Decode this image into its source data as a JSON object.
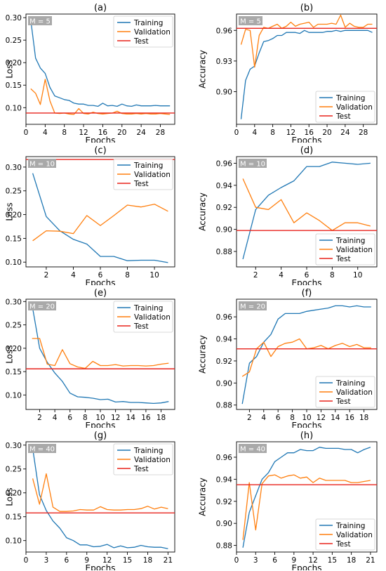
{
  "colors": {
    "training": "#1f77b4",
    "validation": "#ff7f0e",
    "test": "#e8231c",
    "mbadge_bg": "#a9a9a9"
  },
  "chart_data": [
    {
      "type": "line",
      "title": "(a)",
      "xlabel": "Epochs",
      "ylabel": "Loss",
      "badge": "M = 5",
      "legend": "top-right",
      "xlim": [
        0,
        31
      ],
      "ylim": [
        0.063,
        0.308
      ],
      "xticks": [
        0,
        4,
        8,
        12,
        16,
        20,
        24,
        28
      ],
      "yticks": [
        0.1,
        0.15,
        0.2,
        0.25,
        0.3
      ],
      "ytick_labels": [
        "0.10",
        "0.15",
        "0.20",
        "0.25",
        "0.30"
      ],
      "series": [
        {
          "name": "Training",
          "x": [
            1,
            2,
            3,
            4,
            5,
            6,
            7,
            8,
            9,
            10,
            11,
            12,
            13,
            14,
            15,
            16,
            17,
            18,
            19,
            20,
            21,
            22,
            23,
            24,
            25,
            26,
            27,
            28,
            29,
            30
          ],
          "y": [
            0.295,
            0.21,
            0.188,
            0.176,
            0.145,
            0.126,
            0.122,
            0.118,
            0.116,
            0.11,
            0.108,
            0.108,
            0.105,
            0.105,
            0.103,
            0.11,
            0.104,
            0.105,
            0.103,
            0.108,
            0.104,
            0.103,
            0.106,
            0.104,
            0.104,
            0.104,
            0.105,
            0.104,
            0.104,
            0.104
          ]
        },
        {
          "name": "Validation",
          "x": [
            1,
            2,
            3,
            4,
            5,
            6,
            7,
            8,
            9,
            10,
            11,
            12,
            13,
            14,
            15,
            16,
            17,
            18,
            19,
            20,
            21,
            22,
            23,
            24,
            25,
            26,
            27,
            28,
            29,
            30
          ],
          "y": [
            0.142,
            0.132,
            0.107,
            0.163,
            0.115,
            0.088,
            0.087,
            0.088,
            0.086,
            0.085,
            0.098,
            0.087,
            0.086,
            0.09,
            0.087,
            0.086,
            0.087,
            0.088,
            0.092,
            0.087,
            0.086,
            0.086,
            0.087,
            0.086,
            0.087,
            0.086,
            0.086,
            0.087,
            0.086,
            0.085
          ]
        },
        {
          "name": "Test",
          "hline": 0.088
        }
      ]
    },
    {
      "type": "line",
      "title": "(b)",
      "xlabel": "Epochs",
      "ylabel": "Accuracy",
      "badge": "M = 5",
      "legend": "bottom-right",
      "xlim": [
        0,
        31
      ],
      "ylim": [
        0.868,
        0.976
      ],
      "xticks": [
        0,
        4,
        8,
        12,
        16,
        20,
        24,
        28
      ],
      "yticks": [
        0.9,
        0.93,
        0.96
      ],
      "ytick_labels": [
        "0.90",
        "0.93",
        "0.96"
      ],
      "series": [
        {
          "name": "Training",
          "x": [
            1,
            2,
            3,
            4,
            5,
            6,
            7,
            8,
            9,
            10,
            11,
            12,
            13,
            14,
            15,
            16,
            17,
            18,
            19,
            20,
            21,
            22,
            23,
            24,
            25,
            26,
            27,
            28,
            29,
            30
          ],
          "y": [
            0.873,
            0.911,
            0.922,
            0.925,
            0.938,
            0.949,
            0.95,
            0.952,
            0.955,
            0.955,
            0.958,
            0.958,
            0.958,
            0.957,
            0.96,
            0.958,
            0.958,
            0.958,
            0.958,
            0.959,
            0.959,
            0.96,
            0.959,
            0.96,
            0.96,
            0.96,
            0.96,
            0.96,
            0.96,
            0.958
          ]
        },
        {
          "name": "Validation",
          "x": [
            1,
            2,
            3,
            4,
            5,
            6,
            7,
            8,
            9,
            10,
            11,
            12,
            13,
            14,
            15,
            16,
            17,
            18,
            19,
            20,
            21,
            22,
            23,
            24,
            25,
            26,
            27,
            28,
            29,
            30
          ],
          "y": [
            0.946,
            0.961,
            0.96,
            0.924,
            0.955,
            0.963,
            0.962,
            0.964,
            0.966,
            0.962,
            0.964,
            0.968,
            0.964,
            0.966,
            0.967,
            0.968,
            0.963,
            0.966,
            0.966,
            0.966,
            0.967,
            0.966,
            0.975,
            0.963,
            0.967,
            0.964,
            0.963,
            0.963,
            0.966,
            0.966
          ]
        },
        {
          "name": "Test",
          "hline": 0.962
        }
      ]
    },
    {
      "type": "line",
      "title": "(c)",
      "xlabel": "Epochs",
      "ylabel": "Loss",
      "badge": "M = 10",
      "legend": "top-right",
      "xlim": [
        0.5,
        11.5
      ],
      "ylim": [
        0.09,
        0.322
      ],
      "xticks": [
        2,
        4,
        6,
        8,
        10
      ],
      "yticks": [
        0.1,
        0.15,
        0.2,
        0.25,
        0.3
      ],
      "ytick_labels": [
        "0.10",
        "0.15",
        "0.20",
        "0.25",
        "0.30"
      ],
      "series": [
        {
          "name": "Training",
          "x": [
            1,
            2,
            3,
            4,
            5,
            6,
            7,
            8,
            9,
            10,
            11
          ],
          "y": [
            0.287,
            0.196,
            0.166,
            0.148,
            0.138,
            0.112,
            0.112,
            0.103,
            0.104,
            0.104,
            0.099
          ]
        },
        {
          "name": "Validation",
          "x": [
            1,
            2,
            3,
            4,
            5,
            6,
            7,
            8,
            9,
            10,
            11
          ],
          "y": [
            0.145,
            0.166,
            0.165,
            0.16,
            0.198,
            0.177,
            0.198,
            0.22,
            0.216,
            0.222,
            0.207
          ]
        },
        {
          "name": "Test",
          "hline": 0.316
        }
      ]
    },
    {
      "type": "line",
      "title": "(d)",
      "xlabel": "Epochs",
      "ylabel": "Accuracy",
      "badge": "M = 10",
      "legend": "bottom-right",
      "xlim": [
        0.5,
        11.5
      ],
      "ylim": [
        0.866,
        0.966
      ],
      "xticks": [
        2,
        4,
        6,
        8,
        10
      ],
      "yticks": [
        0.88,
        0.9,
        0.92,
        0.94,
        0.96
      ],
      "ytick_labels": [
        "0.88",
        "0.90",
        "0.92",
        "0.94",
        "0.96"
      ],
      "series": [
        {
          "name": "Training",
          "x": [
            1,
            2,
            3,
            4,
            5,
            6,
            7,
            8,
            9,
            10,
            11
          ],
          "y": [
            0.873,
            0.918,
            0.931,
            0.938,
            0.944,
            0.957,
            0.957,
            0.961,
            0.96,
            0.959,
            0.96
          ]
        },
        {
          "name": "Validation",
          "x": [
            1,
            2,
            3,
            4,
            5,
            6,
            7,
            8,
            9,
            10,
            11
          ],
          "y": [
            0.946,
            0.92,
            0.918,
            0.927,
            0.906,
            0.915,
            0.908,
            0.899,
            0.906,
            0.906,
            0.903
          ]
        },
        {
          "name": "Test",
          "hline": 0.899
        }
      ]
    },
    {
      "type": "line",
      "title": "(e)",
      "xlabel": "Epochs",
      "ylabel": "Loss",
      "badge": "M = 20",
      "legend": "top-right",
      "xlim": [
        0.2,
        19.8
      ],
      "ylim": [
        0.069,
        0.305
      ],
      "xticks": [
        2,
        4,
        6,
        8,
        10,
        12,
        14,
        16,
        18
      ],
      "yticks": [
        0.1,
        0.15,
        0.2,
        0.25,
        0.3
      ],
      "ytick_labels": [
        "0.10",
        "0.15",
        "0.20",
        "0.25",
        "0.30"
      ],
      "series": [
        {
          "name": "Training",
          "x": [
            1,
            2,
            3,
            4,
            5,
            6,
            7,
            8,
            9,
            10,
            11,
            12,
            13,
            14,
            15,
            16,
            17,
            18,
            19
          ],
          "y": [
            0.293,
            0.2,
            0.17,
            0.147,
            0.129,
            0.104,
            0.096,
            0.095,
            0.093,
            0.09,
            0.091,
            0.085,
            0.086,
            0.084,
            0.084,
            0.083,
            0.082,
            0.083,
            0.086
          ]
        },
        {
          "name": "Validation",
          "x": [
            1,
            2,
            3,
            4,
            5,
            6,
            7,
            8,
            9,
            10,
            11,
            12,
            13,
            14,
            15,
            16,
            17,
            18,
            19
          ],
          "y": [
            0.221,
            0.221,
            0.166,
            0.163,
            0.197,
            0.167,
            0.16,
            0.157,
            0.172,
            0.163,
            0.163,
            0.165,
            0.162,
            0.163,
            0.163,
            0.162,
            0.163,
            0.166,
            0.168
          ]
        },
        {
          "name": "Test",
          "hline": 0.156
        }
      ]
    },
    {
      "type": "line",
      "title": "(f)",
      "xlabel": "Epochs",
      "ylabel": "Accuracy",
      "badge": "M = 20",
      "legend": "bottom-right",
      "xlim": [
        0.2,
        19.8
      ],
      "ylim": [
        0.876,
        0.976
      ],
      "xticks": [
        2,
        4,
        6,
        8,
        10,
        12,
        14,
        16,
        18
      ],
      "yticks": [
        0.88,
        0.9,
        0.92,
        0.94,
        0.96
      ],
      "ytick_labels": [
        "0.88",
        "0.90",
        "0.92",
        "0.94",
        "0.96"
      ],
      "series": [
        {
          "name": "Training",
          "x": [
            1,
            2,
            3,
            4,
            5,
            6,
            7,
            8,
            9,
            10,
            11,
            12,
            13,
            14,
            15,
            16,
            17,
            18,
            19
          ],
          "y": [
            0.881,
            0.918,
            0.924,
            0.937,
            0.944,
            0.958,
            0.963,
            0.963,
            0.963,
            0.965,
            0.966,
            0.967,
            0.968,
            0.97,
            0.97,
            0.969,
            0.97,
            0.969,
            0.969
          ]
        },
        {
          "name": "Validation",
          "x": [
            1,
            2,
            3,
            4,
            5,
            6,
            7,
            8,
            9,
            10,
            11,
            12,
            13,
            14,
            15,
            16,
            17,
            18,
            19
          ],
          "y": [
            0.906,
            0.91,
            0.931,
            0.937,
            0.924,
            0.933,
            0.936,
            0.937,
            0.94,
            0.931,
            0.932,
            0.934,
            0.931,
            0.934,
            0.936,
            0.933,
            0.935,
            0.932,
            0.932
          ]
        },
        {
          "name": "Test",
          "hline": 0.931
        }
      ]
    },
    {
      "type": "line",
      "title": "(g)",
      "xlabel": "Epochs",
      "ylabel": "Loss",
      "badge": "M = 40",
      "legend": "top-right",
      "xlim": [
        0,
        22
      ],
      "ylim": [
        0.076,
        0.307
      ],
      "xticks": [
        0,
        3,
        6,
        9,
        12,
        15,
        18,
        21
      ],
      "yticks": [
        0.1,
        0.15,
        0.2,
        0.25,
        0.3
      ],
      "ytick_labels": [
        "0.10",
        "0.15",
        "0.20",
        "0.25",
        "0.30"
      ],
      "series": [
        {
          "name": "Training",
          "x": [
            1,
            2,
            3,
            4,
            5,
            6,
            7,
            8,
            9,
            10,
            11,
            12,
            13,
            14,
            15,
            16,
            17,
            18,
            19,
            20,
            21
          ],
          "y": [
            0.293,
            0.196,
            0.163,
            0.141,
            0.126,
            0.106,
            0.1,
            0.091,
            0.091,
            0.087,
            0.088,
            0.092,
            0.085,
            0.089,
            0.085,
            0.086,
            0.09,
            0.087,
            0.086,
            0.086,
            0.083
          ]
        },
        {
          "name": "Validation",
          "x": [
            1,
            2,
            3,
            4,
            5,
            6,
            7,
            8,
            9,
            10,
            11,
            12,
            13,
            14,
            15,
            16,
            17,
            18,
            19,
            20,
            21
          ],
          "y": [
            0.23,
            0.176,
            0.24,
            0.17,
            0.161,
            0.161,
            0.162,
            0.165,
            0.164,
            0.164,
            0.171,
            0.165,
            0.164,
            0.164,
            0.165,
            0.165,
            0.167,
            0.172,
            0.166,
            0.17,
            0.167
          ]
        },
        {
          "name": "Test",
          "hline": 0.158
        }
      ]
    },
    {
      "type": "line",
      "title": "(h)",
      "xlabel": "Epochs",
      "ylabel": "Accuracy",
      "badge": "M = 40",
      "legend": "bottom-right",
      "xlim": [
        0,
        22
      ],
      "ylim": [
        0.874,
        0.974
      ],
      "xticks": [
        0,
        3,
        6,
        9,
        12,
        15,
        18,
        21
      ],
      "yticks": [
        0.88,
        0.9,
        0.92,
        0.94,
        0.96
      ],
      "ytick_labels": [
        "0.88",
        "0.90",
        "0.92",
        "0.94",
        "0.96"
      ],
      "series": [
        {
          "name": "Training",
          "x": [
            1,
            2,
            3,
            4,
            5,
            6,
            7,
            8,
            9,
            10,
            11,
            12,
            13,
            14,
            15,
            16,
            17,
            18,
            19,
            20,
            21
          ],
          "y": [
            0.878,
            0.91,
            0.925,
            0.94,
            0.946,
            0.956,
            0.96,
            0.964,
            0.964,
            0.967,
            0.966,
            0.966,
            0.969,
            0.968,
            0.968,
            0.968,
            0.967,
            0.967,
            0.964,
            0.967,
            0.969
          ]
        },
        {
          "name": "Validation",
          "x": [
            1,
            2,
            3,
            4,
            5,
            6,
            7,
            8,
            9,
            10,
            11,
            12,
            13,
            14,
            15,
            16,
            17,
            18,
            19,
            20,
            21
          ],
          "y": [
            0.885,
            0.937,
            0.894,
            0.936,
            0.943,
            0.944,
            0.941,
            0.943,
            0.944,
            0.941,
            0.942,
            0.937,
            0.941,
            0.939,
            0.939,
            0.939,
            0.939,
            0.937,
            0.937,
            0.938,
            0.939
          ]
        },
        {
          "name": "Test",
          "hline": 0.935
        }
      ]
    }
  ]
}
